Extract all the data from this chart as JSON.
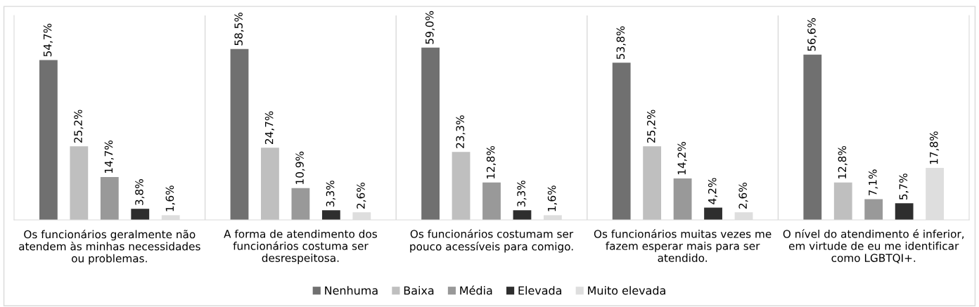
{
  "chart_data": {
    "type": "bar",
    "categories": [
      "Os funcionários geralmente não\natendem às minhas necessidades\nou problemas.",
      "A forma de atendimento dos\nfuncionários costuma ser\ndesrespeitosa.",
      "Os funcionários costumam ser\npouco acessíveis para comigo.",
      "Os funcionários muitas vezes me\nfazem esperar mais para ser\natendido.",
      "O nível do atendimento é inferior,\nem virtude de eu me identificar\ncomo LGBTQI+."
    ],
    "series": [
      {
        "name": "Nenhuma",
        "color": "#707070",
        "values": [
          54.7,
          58.5,
          59.0,
          53.8,
          56.6
        ],
        "value_labels": [
          "54,7%",
          "58,5%",
          "59,0%",
          "53,8%",
          "56,6%"
        ]
      },
      {
        "name": "Baixa",
        "color": "#bfbfbf",
        "values": [
          25.2,
          24.7,
          23.3,
          25.2,
          12.8
        ],
        "value_labels": [
          "25,2%",
          "24,7%",
          "23,3%",
          "25,2%",
          "12,8%"
        ]
      },
      {
        "name": "Média",
        "color": "#999999",
        "values": [
          14.7,
          10.9,
          12.8,
          14.2,
          7.1
        ],
        "value_labels": [
          "14,7%",
          "10,9%",
          "12,8%",
          "14,2%",
          "7,1%"
        ]
      },
      {
        "name": "Elevada",
        "color": "#2e2e2e",
        "values": [
          3.8,
          3.3,
          3.3,
          4.2,
          5.7
        ],
        "value_labels": [
          "3,8%",
          "3,3%",
          "3,3%",
          "4,2%",
          "5,7%"
        ]
      },
      {
        "name": "Muito elevada",
        "color": "#dedede",
        "values": [
          1.6,
          2.6,
          1.6,
          2.6,
          17.8
        ],
        "value_labels": [
          "1,6%",
          "2,6%",
          "1,6%",
          "2,6%",
          "17,8%"
        ]
      }
    ],
    "ylim": [
      0,
      70
    ],
    "tick_labels": "x",
    "grid": "x",
    "legend": "bottom"
  }
}
